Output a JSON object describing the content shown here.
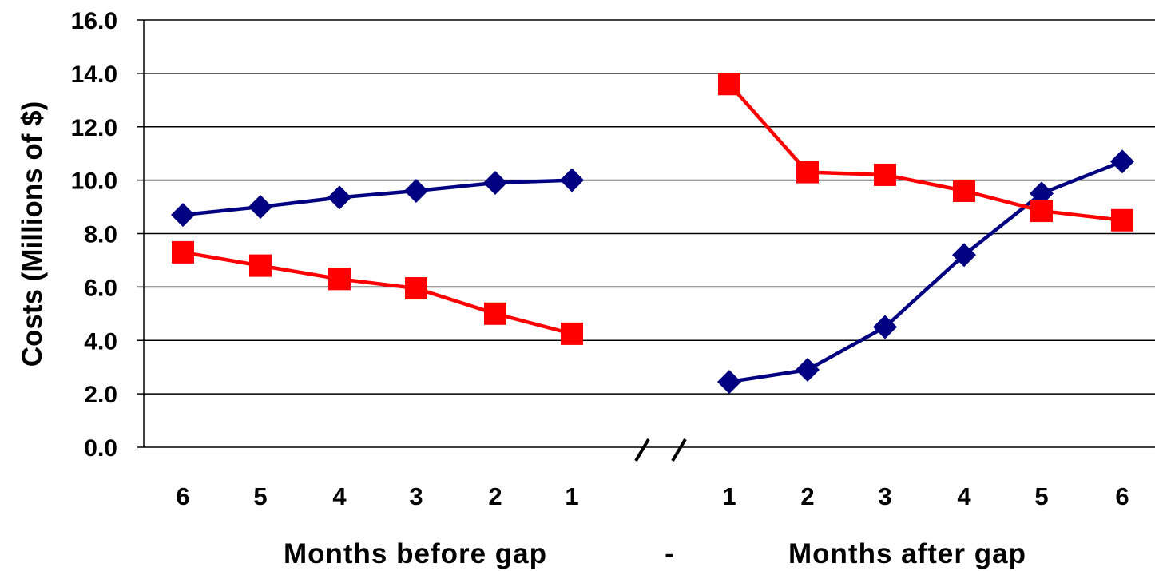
{
  "chart_data": {
    "type": "line",
    "ylabel": "Costs (Millions of $)",
    "xlabel_before": "Months before gap",
    "xlabel_separator": "-",
    "xlabel_after": "Months after gap",
    "ylim": [
      0,
      16
    ],
    "y_ticks": [
      "0.0",
      "2.0",
      "4.0",
      "6.0",
      "8.0",
      "10.0",
      "12.0",
      "14.0",
      "16.0"
    ],
    "grid": true,
    "axis_break": true,
    "segments": [
      {
        "categories": [
          "6",
          "5",
          "4",
          "3",
          "2",
          "1"
        ],
        "series": [
          {
            "marker": "diamond",
            "color": "#000080",
            "values": [
              8.7,
              9.0,
              9.35,
              9.6,
              9.9,
              10.0
            ]
          },
          {
            "marker": "square",
            "color": "#ff0000",
            "values": [
              7.3,
              6.8,
              6.3,
              5.95,
              5.0,
              4.25
            ]
          }
        ]
      },
      {
        "categories": [
          "1",
          "2",
          "3",
          "4",
          "5",
          "6"
        ],
        "series": [
          {
            "marker": "diamond",
            "color": "#000080",
            "values": [
              2.45,
              2.9,
              4.5,
              7.2,
              9.5,
              10.7
            ]
          },
          {
            "marker": "square",
            "color": "#ff0000",
            "values": [
              13.6,
              10.3,
              10.2,
              9.6,
              8.85,
              8.5
            ]
          }
        ]
      }
    ],
    "legend": "none"
  }
}
